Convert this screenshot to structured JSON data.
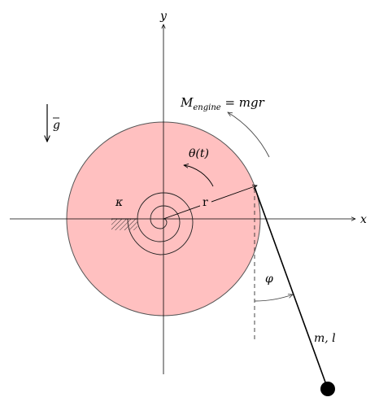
{
  "labels": {
    "y_axis": "y",
    "x_axis": "x",
    "gravity": "g",
    "engine_moment_m": "M",
    "engine_moment_sub": "engine",
    "engine_moment_rhs": " = mgr",
    "theta": "θ(t)",
    "kappa": "κ",
    "radius": "r",
    "phi": "φ",
    "mass_length": "m, l"
  },
  "colors": {
    "disk_fill": "#ffc0c0",
    "disk_stroke": "#555555",
    "line": "#000000",
    "arrow_gray": "#555555"
  },
  "icons": {
    "gravity_arrow": "down-arrow-icon",
    "pendulum_bob": "filled-circle-icon",
    "spring": "spiral-spring-icon",
    "ground": "hatched-ground-icon"
  }
}
